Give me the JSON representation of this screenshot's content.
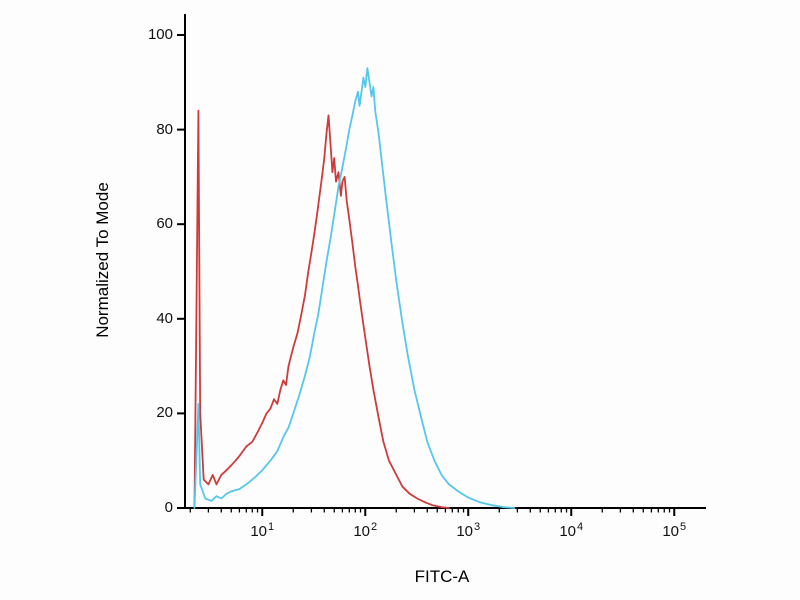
{
  "chart_data": {
    "type": "line",
    "title": "",
    "xlabel": "FITC-A",
    "ylabel": "Normalized To Mode",
    "x_scale": "log10",
    "xlim_log10": [
      0.25,
      5.25
    ],
    "ylim": [
      0,
      100
    ],
    "y_ticks": [
      0,
      20,
      40,
      60,
      80,
      100
    ],
    "x_major_tick_exponents": [
      1,
      2,
      3,
      4,
      5
    ],
    "x_minor_ticks_per_decade": [
      2,
      3,
      4,
      5,
      6,
      7,
      8,
      9
    ],
    "grid": false,
    "legend": null,
    "axis_color": "#000000",
    "background_color": "#fdfdfd",
    "series": [
      {
        "name": "red-curve",
        "color": "#cf3b3b",
        "stroke_width": 1.8,
        "points": [
          [
            2.2,
            0
          ],
          [
            2.4,
            84
          ],
          [
            2.5,
            20
          ],
          [
            2.7,
            6
          ],
          [
            3,
            5
          ],
          [
            3.3,
            7
          ],
          [
            3.6,
            5
          ],
          [
            4,
            7
          ],
          [
            4.5,
            8
          ],
          [
            5,
            9
          ],
          [
            5.5,
            10
          ],
          [
            6,
            11
          ],
          [
            7,
            13
          ],
          [
            8,
            14
          ],
          [
            9,
            16
          ],
          [
            10,
            18
          ],
          [
            11,
            20
          ],
          [
            12,
            21
          ],
          [
            13,
            23
          ],
          [
            14,
            22
          ],
          [
            15,
            25
          ],
          [
            16,
            27
          ],
          [
            17,
            26
          ],
          [
            18,
            30
          ],
          [
            20,
            34
          ],
          [
            22,
            37
          ],
          [
            24,
            41
          ],
          [
            26,
            45
          ],
          [
            28,
            50
          ],
          [
            30,
            54
          ],
          [
            32,
            58
          ],
          [
            34,
            62
          ],
          [
            36,
            66
          ],
          [
            38,
            70
          ],
          [
            40,
            74
          ],
          [
            42,
            79
          ],
          [
            44,
            83
          ],
          [
            46,
            77
          ],
          [
            48,
            71
          ],
          [
            50,
            74
          ],
          [
            52,
            69
          ],
          [
            55,
            71
          ],
          [
            58,
            66
          ],
          [
            60,
            69
          ],
          [
            63,
            70
          ],
          [
            66,
            65
          ],
          [
            70,
            61
          ],
          [
            75,
            56
          ],
          [
            80,
            51
          ],
          [
            85,
            47
          ],
          [
            90,
            43
          ],
          [
            100,
            36
          ],
          [
            110,
            30
          ],
          [
            120,
            25
          ],
          [
            135,
            19
          ],
          [
            150,
            14
          ],
          [
            170,
            10
          ],
          [
            200,
            7
          ],
          [
            230,
            4.5
          ],
          [
            270,
            3
          ],
          [
            320,
            2
          ],
          [
            380,
            1.2
          ],
          [
            450,
            0.6
          ],
          [
            550,
            0.2
          ],
          [
            650,
            0
          ]
        ]
      },
      {
        "name": "cyan-curve",
        "color": "#55c7ea",
        "stroke_width": 1.8,
        "points": [
          [
            2.2,
            0
          ],
          [
            2.4,
            22
          ],
          [
            2.5,
            5
          ],
          [
            2.8,
            2
          ],
          [
            3.2,
            1.5
          ],
          [
            3.6,
            2.5
          ],
          [
            4,
            2
          ],
          [
            4.5,
            3
          ],
          [
            5,
            3.5
          ],
          [
            6,
            4
          ],
          [
            7,
            5
          ],
          [
            8,
            6
          ],
          [
            9,
            7
          ],
          [
            10,
            8
          ],
          [
            12,
            10
          ],
          [
            14,
            12
          ],
          [
            16,
            15
          ],
          [
            18,
            17
          ],
          [
            20,
            20
          ],
          [
            23,
            24
          ],
          [
            26,
            28
          ],
          [
            29,
            32
          ],
          [
            32,
            37
          ],
          [
            35,
            41
          ],
          [
            38,
            46
          ],
          [
            42,
            52
          ],
          [
            46,
            57
          ],
          [
            50,
            62
          ],
          [
            55,
            68
          ],
          [
            60,
            72
          ],
          [
            65,
            76
          ],
          [
            70,
            80
          ],
          [
            75,
            83
          ],
          [
            80,
            86
          ],
          [
            85,
            88
          ],
          [
            88,
            85
          ],
          [
            92,
            88
          ],
          [
            96,
            91
          ],
          [
            100,
            89
          ],
          [
            105,
            93
          ],
          [
            110,
            90
          ],
          [
            115,
            87
          ],
          [
            120,
            89
          ],
          [
            125,
            84
          ],
          [
            135,
            79
          ],
          [
            145,
            73
          ],
          [
            160,
            65
          ],
          [
            180,
            56
          ],
          [
            200,
            48
          ],
          [
            230,
            39
          ],
          [
            260,
            32
          ],
          [
            300,
            25
          ],
          [
            350,
            19
          ],
          [
            400,
            14
          ],
          [
            470,
            10
          ],
          [
            550,
            7
          ],
          [
            650,
            5
          ],
          [
            800,
            3.5
          ],
          [
            1000,
            2.2
          ],
          [
            1300,
            1.2
          ],
          [
            1700,
            0.6
          ],
          [
            2200,
            0.2
          ],
          [
            2800,
            0
          ]
        ]
      }
    ]
  }
}
